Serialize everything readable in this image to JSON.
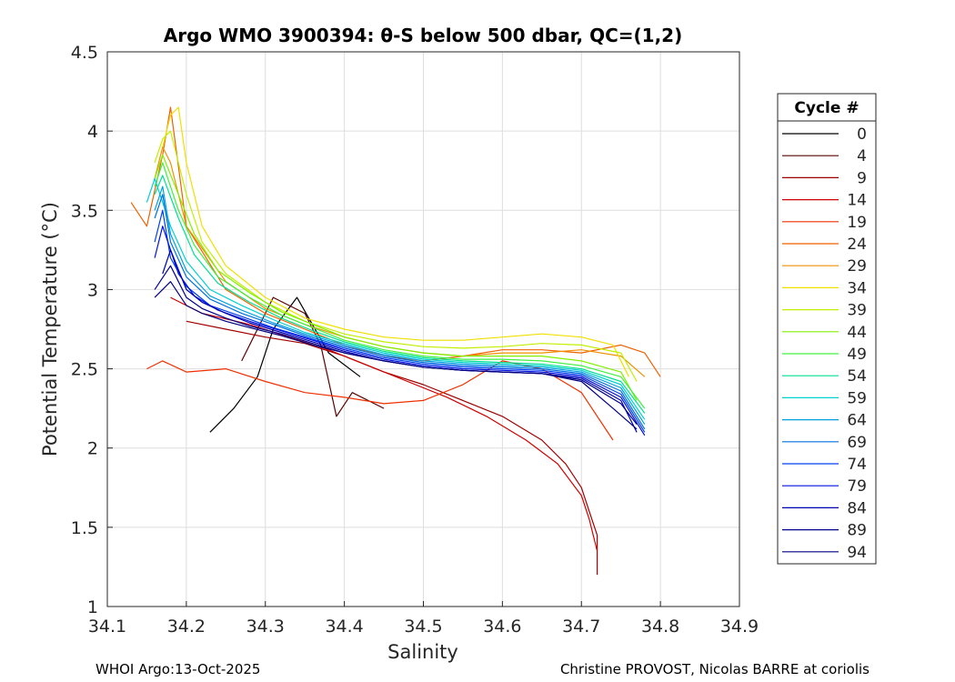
{
  "chart_data": {
    "type": "line",
    "title": "Argo WMO 3900394: θ-S below 500 dbar,  QC=(1,2)",
    "xlabel": "Salinity",
    "ylabel": "Potential Temperature (°C)",
    "xlim": [
      34.1,
      34.9
    ],
    "ylim": [
      1,
      4.5
    ],
    "xticks": [
      "34.1",
      "34.2",
      "34.3",
      "34.4",
      "34.5",
      "34.6",
      "34.7",
      "34.8",
      "34.9"
    ],
    "yticks": [
      "1",
      "1.5",
      "2",
      "2.5",
      "3",
      "3.5",
      "4",
      "4.5"
    ],
    "grid": true,
    "legend_title": "Cycle #",
    "legend_position": "right",
    "series": [
      {
        "name": "0",
        "color": "#000000",
        "x": [
          34.23,
          34.26,
          34.29,
          34.31,
          34.34,
          34.38,
          34.42
        ],
        "y": [
          2.1,
          2.25,
          2.45,
          2.75,
          2.95,
          2.6,
          2.45
        ]
      },
      {
        "name": "4",
        "color": "#5a0000",
        "x": [
          34.27,
          34.29,
          34.31,
          34.35,
          34.37,
          34.39,
          34.41,
          34.45
        ],
        "y": [
          2.55,
          2.75,
          2.95,
          2.85,
          2.65,
          2.2,
          2.35,
          2.25
        ]
      },
      {
        "name": "9",
        "color": "#a00000",
        "x": [
          34.2,
          34.25,
          34.3,
          34.35,
          34.4,
          34.45,
          34.5,
          34.55,
          34.6,
          34.65,
          34.68,
          34.7,
          34.71,
          34.72,
          34.72
        ],
        "y": [
          2.8,
          2.75,
          2.7,
          2.66,
          2.58,
          2.48,
          2.4,
          2.3,
          2.2,
          2.05,
          1.9,
          1.75,
          1.6,
          1.45,
          1.2
        ]
      },
      {
        "name": "14",
        "color": "#d00000",
        "x": [
          34.18,
          34.22,
          34.28,
          34.33,
          34.38,
          34.43,
          34.48,
          34.53,
          34.58,
          34.63,
          34.67,
          34.7,
          34.71,
          34.72
        ],
        "y": [
          2.95,
          2.85,
          2.78,
          2.7,
          2.62,
          2.52,
          2.42,
          2.32,
          2.2,
          2.05,
          1.9,
          1.7,
          1.55,
          1.35
        ]
      },
      {
        "name": "19",
        "color": "#f03000",
        "x": [
          34.15,
          34.17,
          34.2,
          34.25,
          34.3,
          34.35,
          34.4,
          34.45,
          34.5,
          34.55,
          34.6,
          34.65,
          34.7,
          34.74
        ],
        "y": [
          2.5,
          2.55,
          2.48,
          2.5,
          2.42,
          2.35,
          2.32,
          2.28,
          2.3,
          2.4,
          2.55,
          2.5,
          2.35,
          2.05
        ]
      },
      {
        "name": "24",
        "color": "#f06000",
        "x": [
          34.13,
          34.15,
          34.17,
          34.18,
          34.2,
          34.25,
          34.3,
          34.35,
          34.4,
          34.45,
          34.5,
          34.55,
          34.6,
          34.65,
          34.7,
          34.75,
          34.78,
          34.8
        ],
        "y": [
          3.55,
          3.4,
          3.85,
          4.15,
          3.4,
          3.0,
          2.85,
          2.75,
          2.65,
          2.58,
          2.55,
          2.58,
          2.62,
          2.62,
          2.6,
          2.65,
          2.6,
          2.45
        ]
      },
      {
        "name": "29",
        "color": "#f09000",
        "x": [
          34.16,
          34.17,
          34.18,
          34.2,
          34.25,
          34.3,
          34.35,
          34.4,
          34.45,
          34.5,
          34.55,
          34.6,
          34.65,
          34.7,
          34.75,
          34.78
        ],
        "y": [
          3.7,
          3.9,
          3.8,
          3.4,
          3.05,
          2.88,
          2.78,
          2.7,
          2.64,
          2.6,
          2.58,
          2.6,
          2.6,
          2.62,
          2.58,
          2.45
        ]
      },
      {
        "name": "34",
        "color": "#f0e000",
        "x": [
          34.17,
          34.18,
          34.19,
          34.2,
          34.22,
          34.25,
          34.3,
          34.35,
          34.4,
          34.45,
          34.5,
          34.55,
          34.6,
          34.65,
          34.7,
          34.74,
          34.76
        ],
        "y": [
          3.9,
          4.1,
          4.15,
          3.8,
          3.4,
          3.15,
          2.95,
          2.82,
          2.75,
          2.7,
          2.68,
          2.68,
          2.7,
          2.72,
          2.7,
          2.65,
          2.45
        ]
      },
      {
        "name": "39",
        "color": "#c0f000",
        "x": [
          34.16,
          34.17,
          34.18,
          34.2,
          34.22,
          34.25,
          34.3,
          34.35,
          34.4,
          34.45,
          34.5,
          34.55,
          34.6,
          34.65,
          34.7,
          34.75,
          34.77
        ],
        "y": [
          3.8,
          3.95,
          4.0,
          3.6,
          3.3,
          3.1,
          2.92,
          2.8,
          2.72,
          2.67,
          2.64,
          2.63,
          2.64,
          2.66,
          2.65,
          2.6,
          2.42
        ]
      },
      {
        "name": "44",
        "color": "#80f000",
        "x": [
          34.16,
          34.17,
          34.19,
          34.21,
          34.24,
          34.28,
          34.32,
          34.36,
          34.4,
          34.45,
          34.5,
          34.55,
          34.6,
          34.65,
          34.7,
          34.75,
          34.77
        ],
        "y": [
          3.7,
          3.85,
          3.6,
          3.35,
          3.12,
          2.98,
          2.86,
          2.78,
          2.7,
          2.64,
          2.6,
          2.58,
          2.58,
          2.58,
          2.55,
          2.48,
          2.3
        ]
      },
      {
        "name": "49",
        "color": "#40f040",
        "x": [
          34.16,
          34.17,
          34.19,
          34.21,
          34.24,
          34.28,
          34.32,
          34.36,
          34.4,
          34.45,
          34.5,
          34.55,
          34.6,
          34.65,
          34.7,
          34.75,
          34.78
        ],
        "y": [
          3.65,
          3.8,
          3.5,
          3.28,
          3.08,
          2.95,
          2.84,
          2.76,
          2.68,
          2.62,
          2.58,
          2.56,
          2.56,
          2.55,
          2.52,
          2.45,
          2.25
        ]
      },
      {
        "name": "54",
        "color": "#00e090",
        "x": [
          34.16,
          34.17,
          34.19,
          34.21,
          34.24,
          34.28,
          34.32,
          34.36,
          34.4,
          34.45,
          34.5,
          34.55,
          34.6,
          34.65,
          34.7,
          34.75,
          34.78
        ],
        "y": [
          3.6,
          3.72,
          3.45,
          3.22,
          3.04,
          2.92,
          2.82,
          2.74,
          2.67,
          2.61,
          2.57,
          2.55,
          2.54,
          2.53,
          2.5,
          2.42,
          2.22
        ]
      },
      {
        "name": "59",
        "color": "#00d0d0",
        "x": [
          34.15,
          34.16,
          34.18,
          34.2,
          34.23,
          34.27,
          34.31,
          34.35,
          34.4,
          34.45,
          34.5,
          34.55,
          34.6,
          34.65,
          34.7,
          34.75,
          34.78
        ],
        "y": [
          3.55,
          3.7,
          3.4,
          3.18,
          3.0,
          2.9,
          2.81,
          2.73,
          2.66,
          2.6,
          2.56,
          2.54,
          2.53,
          2.52,
          2.49,
          2.4,
          2.18
        ]
      },
      {
        "name": "64",
        "color": "#00a0e0",
        "x": [
          34.16,
          34.17,
          34.18,
          34.2,
          34.23,
          34.27,
          34.31,
          34.35,
          34.4,
          34.45,
          34.5,
          34.55,
          34.6,
          34.65,
          34.7,
          34.75,
          34.78
        ],
        "y": [
          3.5,
          3.65,
          3.35,
          3.12,
          2.96,
          2.87,
          2.79,
          2.72,
          2.65,
          2.59,
          2.55,
          2.53,
          2.52,
          2.51,
          2.48,
          2.38,
          2.15
        ]
      },
      {
        "name": "69",
        "color": "#0070e0",
        "x": [
          34.16,
          34.17,
          34.18,
          34.2,
          34.23,
          34.27,
          34.31,
          34.35,
          34.4,
          34.45,
          34.5,
          34.55,
          34.6,
          34.65,
          34.7,
          34.75,
          34.78
        ],
        "y": [
          3.45,
          3.6,
          3.3,
          3.08,
          2.94,
          2.85,
          2.78,
          2.71,
          2.64,
          2.58,
          2.54,
          2.52,
          2.51,
          2.5,
          2.47,
          2.36,
          2.12
        ]
      },
      {
        "name": "74",
        "color": "#0040f0",
        "x": [
          34.16,
          34.17,
          34.18,
          34.2,
          34.23,
          34.27,
          34.31,
          34.35,
          34.4,
          34.45,
          34.5,
          34.55,
          34.6,
          34.65,
          34.7,
          34.75,
          34.78
        ],
        "y": [
          3.3,
          3.5,
          3.2,
          3.02,
          2.9,
          2.83,
          2.76,
          2.7,
          2.63,
          2.57,
          2.53,
          2.51,
          2.5,
          2.49,
          2.46,
          2.34,
          2.1
        ]
      },
      {
        "name": "79",
        "color": "#0010e0",
        "x": [
          34.16,
          34.17,
          34.19,
          34.21,
          34.24,
          34.28,
          34.32,
          34.36,
          34.4,
          34.45,
          34.5,
          34.55,
          34.6,
          34.65,
          34.7,
          34.75,
          34.78
        ],
        "y": [
          3.2,
          3.4,
          3.1,
          2.96,
          2.87,
          2.8,
          2.74,
          2.68,
          2.62,
          2.56,
          2.52,
          2.5,
          2.49,
          2.48,
          2.45,
          2.32,
          2.08
        ]
      },
      {
        "name": "84",
        "color": "#0000b0",
        "x": [
          34.17,
          34.18,
          34.2,
          34.22,
          34.25,
          34.28,
          34.32,
          34.36,
          34.4,
          34.45,
          34.5,
          34.55,
          34.6,
          34.65,
          34.7,
          34.75,
          34.77
        ],
        "y": [
          3.1,
          3.25,
          3.0,
          2.92,
          2.85,
          2.79,
          2.73,
          2.67,
          2.61,
          2.55,
          2.51,
          2.49,
          2.48,
          2.47,
          2.44,
          2.3,
          2.1
        ]
      },
      {
        "name": "89",
        "color": "#00008c",
        "x": [
          34.16,
          34.18,
          34.2,
          34.22,
          34.25,
          34.28,
          34.32,
          34.36,
          34.4,
          34.45,
          34.5,
          34.55,
          34.6,
          34.65,
          34.7,
          34.75,
          34.77
        ],
        "y": [
          3.0,
          3.15,
          2.95,
          2.88,
          2.82,
          2.77,
          2.72,
          2.66,
          2.6,
          2.55,
          2.51,
          2.49,
          2.48,
          2.47,
          2.43,
          2.28,
          2.15
        ]
      },
      {
        "name": "94",
        "color": "#000080",
        "x": [
          34.16,
          34.18,
          34.2,
          34.22,
          34.25,
          34.28,
          34.32,
          34.36,
          34.4,
          34.45,
          34.5,
          34.55,
          34.6,
          34.65,
          34.7,
          34.74,
          34.77
        ],
        "y": [
          2.95,
          3.05,
          2.9,
          2.85,
          2.8,
          2.76,
          2.71,
          2.65,
          2.6,
          2.55,
          2.51,
          2.49,
          2.48,
          2.47,
          2.42,
          2.25,
          2.12
        ]
      }
    ]
  },
  "footer": {
    "left": "WHOI Argo:13-Oct-2025",
    "right": "Christine PROVOST, Nicolas BARRE at coriolis"
  }
}
